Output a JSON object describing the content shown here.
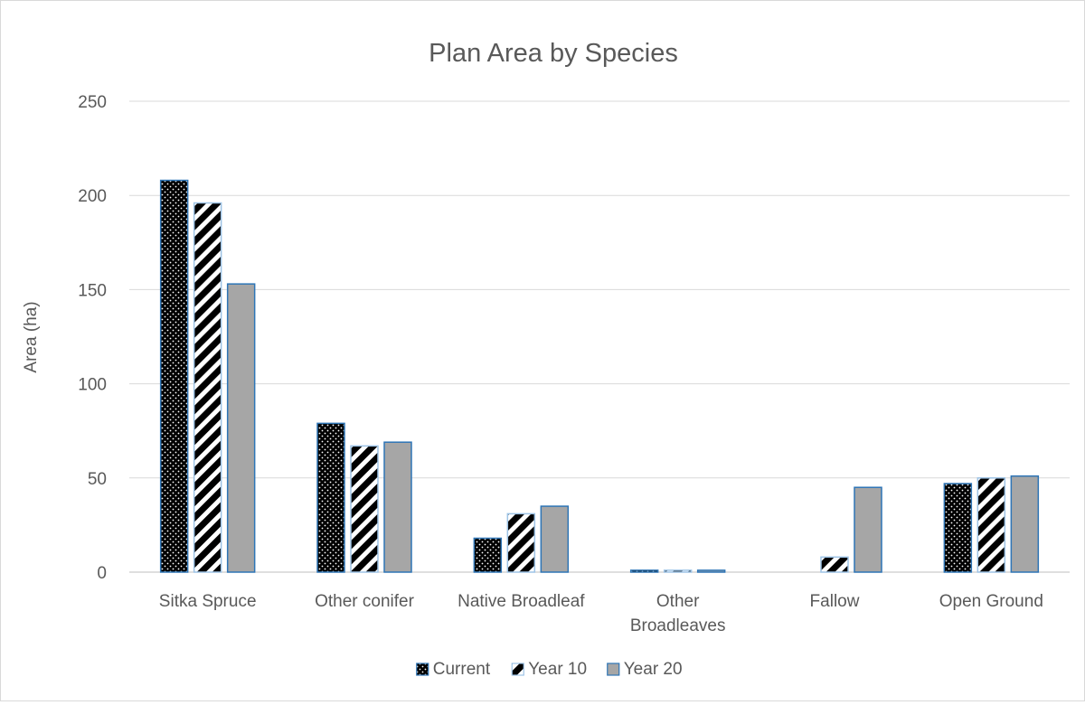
{
  "chart_data": {
    "type": "bar",
    "title": "Plan Area by Species",
    "ylabel": "Area (ha)",
    "xlabel": "",
    "ylim": [
      0,
      250
    ],
    "yticks": [
      0,
      50,
      100,
      150,
      200,
      250
    ],
    "grid": true,
    "legend_position": "bottom",
    "categories": [
      "Sitka Spruce",
      "Other conifer",
      "Native Broadleaf",
      "Other Broadleaves",
      "Fallow",
      "Open Ground"
    ],
    "category_lines": [
      [
        "Sitka Spruce"
      ],
      [
        "Other conifer"
      ],
      [
        "Native Broadleaf"
      ],
      [
        "Other",
        "Broadleaves"
      ],
      [
        "Fallow"
      ],
      [
        "Open Ground"
      ]
    ],
    "series": [
      {
        "name": "Current",
        "values": [
          208,
          79,
          18,
          1,
          0,
          47
        ],
        "fill": "dots",
        "color": "#000000",
        "stroke": "#2e75b6"
      },
      {
        "name": "Year 10",
        "values": [
          196,
          67,
          31,
          1,
          8,
          50
        ],
        "fill": "stripes",
        "color": "#000000",
        "stroke": "#9dc3e6"
      },
      {
        "name": "Year 20",
        "values": [
          153,
          69,
          35,
          1,
          45,
          51
        ],
        "fill": "solid",
        "color": "#a6a6a6",
        "stroke": "#2e75b6"
      }
    ]
  }
}
